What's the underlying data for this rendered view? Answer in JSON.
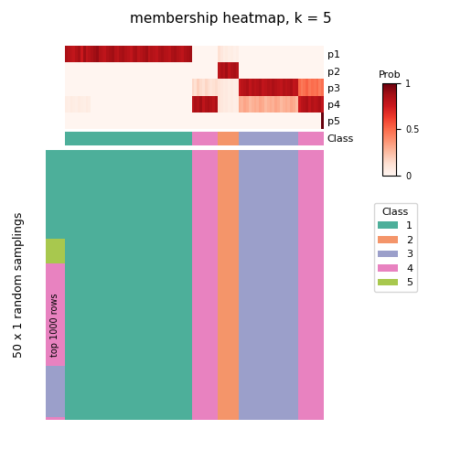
{
  "chart_data": {
    "type": "heatmap",
    "title": "membership heatmap, k = 5",
    "ylabel": "50 x 1 random samplings",
    "inner_label": "top 1000 rows",
    "row_labels": [
      "p1",
      "p2",
      "p3",
      "p4",
      "p5"
    ],
    "cells": [
      [
        0.85,
        0.82,
        0.8,
        0.78,
        0.83,
        0.87,
        0.75,
        0.88,
        0.79,
        0.82,
        0.85,
        0.88,
        0.9,
        0.83,
        0.81,
        0.79,
        0.84,
        0.86,
        0.88,
        0.82,
        0.8,
        0.85,
        0.87,
        0.83,
        0.81,
        0.78,
        0.84,
        0.86,
        0.8,
        0.82,
        0.85,
        0.88,
        0.8,
        0.83,
        0.81,
        0.79,
        0.84,
        0.86,
        0.83,
        0.82,
        0.8,
        0.85,
        0.87,
        0.83,
        0.81,
        0.79,
        0.84,
        0.86,
        0.88,
        0.0,
        0.0,
        0.0,
        0.0,
        0.0,
        0.0,
        0.0,
        0.0,
        0.0,
        0.0,
        0.12,
        0.08,
        0.05,
        0.06,
        0.04,
        0.05,
        0.03,
        0.04,
        0.0,
        0.0,
        0.0,
        0.0,
        0.0,
        0.0,
        0.0,
        0.0,
        0.0,
        0.0,
        0.0,
        0.0,
        0.0,
        0.0,
        0.0,
        0.0,
        0.0,
        0.0,
        0.0,
        0.0,
        0.0,
        0.0,
        0.0,
        0.0,
        0.0,
        0.0,
        0.0,
        0.0,
        0.0,
        0.0,
        0.0,
        0.0,
        0.0
      ],
      [
        0.0,
        0.0,
        0.0,
        0.0,
        0.0,
        0.0,
        0.0,
        0.0,
        0.0,
        0.0,
        0.0,
        0.0,
        0.0,
        0.0,
        0.0,
        0.0,
        0.0,
        0.0,
        0.0,
        0.0,
        0.0,
        0.0,
        0.0,
        0.0,
        0.0,
        0.0,
        0.0,
        0.0,
        0.0,
        0.0,
        0.0,
        0.0,
        0.0,
        0.0,
        0.0,
        0.0,
        0.0,
        0.0,
        0.0,
        0.0,
        0.0,
        0.0,
        0.0,
        0.0,
        0.0,
        0.0,
        0.0,
        0.0,
        0.0,
        0.0,
        0.0,
        0.0,
        0.0,
        0.0,
        0.0,
        0.0,
        0.0,
        0.0,
        0.0,
        0.8,
        0.85,
        0.82,
        0.88,
        0.79,
        0.84,
        0.86,
        0.83,
        0.0,
        0.0,
        0.0,
        0.0,
        0.0,
        0.0,
        0.0,
        0.0,
        0.0,
        0.0,
        0.0,
        0.0,
        0.0,
        0.0,
        0.0,
        0.0,
        0.0,
        0.0,
        0.0,
        0.0,
        0.0,
        0.0,
        0.0,
        0.0,
        0.0,
        0.0,
        0.0,
        0.0,
        0.0,
        0.0,
        0.0,
        0.0,
        0.0
      ],
      [
        0.0,
        0.0,
        0.0,
        0.0,
        0.0,
        0.0,
        0.0,
        0.0,
        0.0,
        0.0,
        0.0,
        0.0,
        0.0,
        0.0,
        0.0,
        0.0,
        0.0,
        0.0,
        0.0,
        0.0,
        0.0,
        0.0,
        0.0,
        0.0,
        0.0,
        0.0,
        0.0,
        0.0,
        0.0,
        0.0,
        0.0,
        0.0,
        0.0,
        0.0,
        0.0,
        0.0,
        0.0,
        0.0,
        0.0,
        0.0,
        0.0,
        0.0,
        0.0,
        0.0,
        0.0,
        0.0,
        0.0,
        0.0,
        0.0,
        0.15,
        0.12,
        0.18,
        0.14,
        0.11,
        0.16,
        0.13,
        0.1,
        0.12,
        0.14,
        0.1,
        0.08,
        0.06,
        0.07,
        0.05,
        0.06,
        0.04,
        0.05,
        0.75,
        0.8,
        0.82,
        0.85,
        0.78,
        0.83,
        0.8,
        0.82,
        0.85,
        0.78,
        0.8,
        0.83,
        0.81,
        0.85,
        0.82,
        0.8,
        0.78,
        0.83,
        0.8,
        0.82,
        0.85,
        0.78,
        0.8,
        0.5,
        0.45,
        0.48,
        0.52,
        0.46,
        0.49,
        0.47,
        0.5,
        0.44,
        0.48
      ],
      [
        0.05,
        0.04,
        0.06,
        0.05,
        0.04,
        0.06,
        0.05,
        0.04,
        0.06,
        0.05,
        0.0,
        0.0,
        0.0,
        0.0,
        0.0,
        0.0,
        0.0,
        0.0,
        0.0,
        0.0,
        0.0,
        0.0,
        0.0,
        0.0,
        0.0,
        0.0,
        0.0,
        0.0,
        0.0,
        0.0,
        0.0,
        0.0,
        0.0,
        0.0,
        0.0,
        0.0,
        0.0,
        0.0,
        0.0,
        0.0,
        0.0,
        0.0,
        0.0,
        0.0,
        0.0,
        0.0,
        0.0,
        0.0,
        0.0,
        0.8,
        0.85,
        0.82,
        0.88,
        0.79,
        0.84,
        0.86,
        0.83,
        0.8,
        0.85,
        0.1,
        0.08,
        0.06,
        0.07,
        0.05,
        0.06,
        0.04,
        0.05,
        0.3,
        0.28,
        0.32,
        0.3,
        0.25,
        0.28,
        0.3,
        0.28,
        0.32,
        0.3,
        0.25,
        0.28,
        0.3,
        0.28,
        0.32,
        0.3,
        0.25,
        0.28,
        0.3,
        0.28,
        0.32,
        0.3,
        0.25,
        0.75,
        0.8,
        0.82,
        0.85,
        0.78,
        0.83,
        0.8,
        0.82,
        0.85,
        0.78
      ],
      [
        0.0,
        0.0,
        0.0,
        0.0,
        0.0,
        0.0,
        0.0,
        0.0,
        0.0,
        0.0,
        0.0,
        0.0,
        0.0,
        0.0,
        0.0,
        0.0,
        0.0,
        0.0,
        0.0,
        0.0,
        0.0,
        0.0,
        0.0,
        0.0,
        0.0,
        0.0,
        0.0,
        0.0,
        0.0,
        0.0,
        0.0,
        0.0,
        0.0,
        0.0,
        0.0,
        0.0,
        0.0,
        0.0,
        0.0,
        0.0,
        0.0,
        0.0,
        0.0,
        0.0,
        0.0,
        0.0,
        0.0,
        0.0,
        0.0,
        0.0,
        0.0,
        0.0,
        0.0,
        0.0,
        0.0,
        0.0,
        0.0,
        0.0,
        0.0,
        0.0,
        0.0,
        0.0,
        0.0,
        0.0,
        0.0,
        0.0,
        0.0,
        0.0,
        0.0,
        0.0,
        0.0,
        0.0,
        0.0,
        0.0,
        0.0,
        0.0,
        0.0,
        0.0,
        0.0,
        0.0,
        0.0,
        0.0,
        0.0,
        0.0,
        0.0,
        0.0,
        0.0,
        0.0,
        0.0,
        0.0,
        0.0,
        0.0,
        0.0,
        0.0,
        0.0,
        0.0,
        0.0,
        0.0,
        0.0,
        1.0
      ]
    ],
    "colorbar_title": "Prob",
    "colorbar_range": [
      0,
      1
    ],
    "colorbar_ticks": [
      0,
      0.5,
      1
    ],
    "class_row_label": "Class",
    "legend_title": "Class",
    "classes": [
      {
        "name": "1",
        "color": "#4DAF9A"
      },
      {
        "name": "2",
        "color": "#F4956A"
      },
      {
        "name": "3",
        "color": "#9B9FCA"
      },
      {
        "name": "4",
        "color": "#E882C0"
      },
      {
        "name": "5",
        "color": "#A8C84E"
      }
    ],
    "column_classes": [
      1,
      1,
      1,
      1,
      1,
      1,
      1,
      1,
      1,
      1,
      1,
      1,
      1,
      1,
      1,
      1,
      1,
      1,
      1,
      1,
      1,
      1,
      1,
      1,
      1,
      1,
      1,
      1,
      1,
      1,
      1,
      1,
      1,
      1,
      1,
      1,
      1,
      1,
      1,
      1,
      1,
      1,
      1,
      1,
      1,
      1,
      1,
      1,
      1,
      4,
      4,
      4,
      4,
      4,
      4,
      4,
      4,
      4,
      4,
      2,
      2,
      2,
      2,
      2,
      2,
      2,
      2,
      3,
      3,
      3,
      3,
      3,
      3,
      3,
      3,
      3,
      3,
      3,
      3,
      3,
      3,
      3,
      3,
      3,
      3,
      3,
      3,
      3,
      3,
      3,
      4,
      4,
      4,
      4,
      4,
      4,
      4,
      4,
      4,
      4
    ],
    "row_classes": [
      1,
      1,
      1,
      1,
      1,
      1,
      1,
      1,
      1,
      1,
      1,
      1,
      1,
      1,
      1,
      1,
      1,
      1,
      1,
      1,
      1,
      1,
      1,
      1,
      1,
      1,
      1,
      1,
      1,
      1,
      1,
      1,
      1,
      5,
      5,
      5,
      5,
      5,
      5,
      5,
      5,
      5,
      4,
      4,
      4,
      4,
      4,
      4,
      4,
      4,
      4,
      4,
      4,
      4,
      4,
      4,
      4,
      4,
      4,
      4,
      4,
      4,
      4,
      4,
      4,
      4,
      4,
      4,
      4,
      4,
      4,
      4,
      4,
      4,
      4,
      4,
      4,
      4,
      4,
      4,
      3,
      3,
      3,
      3,
      3,
      3,
      3,
      3,
      3,
      3,
      3,
      3,
      3,
      3,
      3,
      3,
      3,
      3,
      3,
      4
    ]
  }
}
